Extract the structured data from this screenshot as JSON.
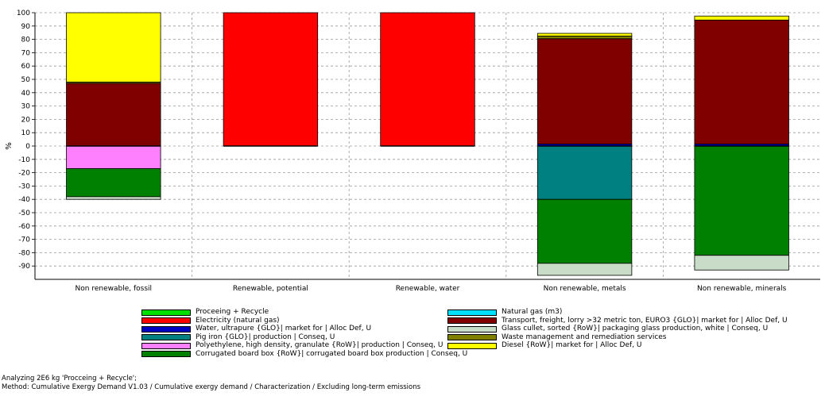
{
  "chart_data": {
    "type": "bar",
    "stacked": true,
    "ylabel": "%",
    "ylim": [
      -100,
      100
    ],
    "yticks": [
      100,
      90,
      80,
      70,
      60,
      50,
      40,
      30,
      20,
      10,
      0,
      -10,
      -20,
      -30,
      -40,
      -50,
      -60,
      -70,
      -80,
      -90
    ],
    "grid": true,
    "legend_position": "bottom",
    "categories": [
      "Non renewable, fossil",
      "Renewable, potential",
      "Renewable, water",
      "Non renewable, metals",
      "Non renewable, minerals"
    ],
    "series": [
      {
        "name": "Proceeing + Recycle",
        "color": "#00e000",
        "values": [
          0,
          0,
          0,
          0,
          0
        ]
      },
      {
        "name": "Electricity (natural gas)",
        "color": "#ff0000",
        "values": [
          0,
          100,
          100,
          0,
          0
        ]
      },
      {
        "name": "Water, ultrapure {GLO}| market for | Alloc Def, U",
        "color": "#0000c0",
        "values": [
          0,
          0,
          0,
          1.5,
          1.5
        ]
      },
      {
        "name": "Pig iron {GLO}| production | Conseq, U",
        "color": "#008080",
        "values": [
          0,
          0,
          0,
          -40,
          0
        ]
      },
      {
        "name": "Polyethylene, high density, granulate {RoW}| production | Conseq, U",
        "color": "#ff80ff",
        "values": [
          -17,
          0,
          0,
          0,
          0
        ]
      },
      {
        "name": "Corrugated board box {RoW}| corrugated board box production | Conseq, U",
        "color": "#008000",
        "values": [
          -21,
          0,
          0,
          -48,
          -82
        ]
      },
      {
        "name": "Natural gas (m3)",
        "color": "#00e0ff",
        "values": [
          0,
          0,
          0,
          0,
          0
        ]
      },
      {
        "name": "Transport, freight, lorry >32 metric ton, EURO3 {GLO}| market for | Alloc Def, U",
        "color": "#800000",
        "values": [
          47,
          0,
          0,
          79,
          93
        ]
      },
      {
        "name": "Glass cullet, sorted {RoW}| packaging glass production, white | Conseq, U",
        "color": "#c8dcc8",
        "values": [
          -2,
          0,
          0,
          -9,
          -11
        ]
      },
      {
        "name": "Waste management and remediation services",
        "color": "#808000",
        "values": [
          1,
          0,
          0,
          2,
          0
        ]
      },
      {
        "name": "Diesel {RoW}| market for | Alloc Def, U",
        "color": "#ffff00",
        "values": [
          52,
          0,
          0,
          2,
          3
        ]
      }
    ]
  },
  "footer": {
    "line1": "Analyzing 2E6 kg 'Procceing + Recycle';",
    "line2": "Method: Cumulative Exergy Demand V1.03 / Cumulative exergy demand / Characterization / Excluding long-term emissions"
  }
}
